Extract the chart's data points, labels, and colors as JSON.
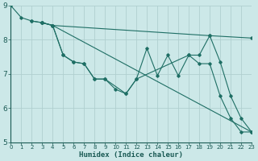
{
  "xlabel": "Humidex (Indice chaleur)",
  "background_color": "#cce8e8",
  "grid_color": "#b0cfcf",
  "line_color": "#1e6e64",
  "xlim": [
    0,
    23
  ],
  "ylim": [
    5,
    9
  ],
  "yticks": [
    5,
    6,
    7,
    8,
    9
  ],
  "xtick_labels": [
    "0",
    "1",
    "2",
    "3",
    "4",
    "5",
    "6",
    "7",
    "8",
    "9",
    "10",
    "11",
    "12",
    "13",
    "14",
    "15",
    "16",
    "17",
    "18",
    "19",
    "20",
    "21",
    "22",
    "23"
  ],
  "lines": [
    {
      "x": [
        0,
        1,
        2,
        3,
        4,
        23
      ],
      "y": [
        9.0,
        8.65,
        8.55,
        8.5,
        8.42,
        5.3
      ]
    },
    {
      "x": [
        2,
        3,
        4,
        19,
        23
      ],
      "y": [
        8.55,
        8.5,
        8.42,
        8.12,
        8.05
      ]
    },
    {
      "x": [
        3,
        4,
        5,
        6,
        7,
        8,
        9,
        11,
        12,
        13,
        14,
        15,
        16,
        17,
        18,
        19,
        20,
        21,
        22,
        23
      ],
      "y": [
        8.5,
        8.42,
        7.55,
        7.35,
        7.3,
        6.85,
        6.85,
        6.42,
        6.85,
        7.75,
        6.95,
        7.55,
        6.95,
        7.55,
        7.55,
        8.12,
        7.35,
        6.35,
        5.7,
        5.3
      ]
    },
    {
      "x": [
        3,
        4,
        5,
        6,
        7,
        8,
        9,
        10,
        11,
        12,
        17,
        18,
        19,
        20,
        21,
        22,
        23
      ],
      "y": [
        8.5,
        8.42,
        7.55,
        7.35,
        7.3,
        6.85,
        6.85,
        6.55,
        6.42,
        6.85,
        7.55,
        7.3,
        7.3,
        6.35,
        5.7,
        5.3,
        5.3
      ]
    }
  ]
}
